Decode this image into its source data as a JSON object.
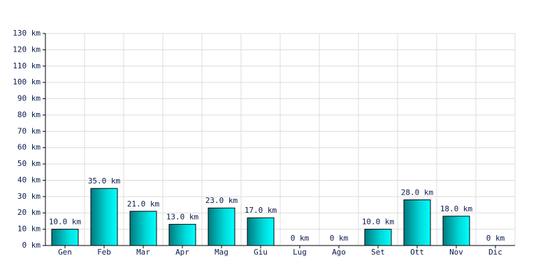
{
  "chart_data": {
    "type": "bar",
    "categories": [
      "Gen",
      "Feb",
      "Mar",
      "Apr",
      "Mag",
      "Giu",
      "Lug",
      "Ago",
      "Set",
      "Ott",
      "Nov",
      "Dic"
    ],
    "values": [
      10,
      35,
      21,
      13,
      23,
      17,
      0,
      0,
      10,
      28,
      18,
      0
    ],
    "value_labels": [
      "10.0 km",
      "35.0 km",
      "21.0 km",
      "13.0 km",
      "23.0 km",
      "17.0 km",
      "0 km",
      "0 km",
      "10.0 km",
      "28.0 km",
      "18.0 km",
      "0 km"
    ],
    "color": "#00d8d8",
    "ylim": [
      0,
      130
    ],
    "yticks": [
      {
        "value": 0,
        "label": "0 km"
      },
      {
        "value": 10,
        "label": "10 km"
      },
      {
        "value": 20,
        "label": "20 km"
      },
      {
        "value": 30,
        "label": "30 km"
      },
      {
        "value": 40,
        "label": "40 km"
      },
      {
        "value": 50,
        "label": "50 km"
      },
      {
        "value": 60,
        "label": "60 km"
      },
      {
        "value": 70,
        "label": "70 km"
      },
      {
        "value": 80,
        "label": "80 km"
      },
      {
        "value": 90,
        "label": "90 km"
      },
      {
        "value": 100,
        "label": "100 km"
      },
      {
        "value": 110,
        "label": "110 km"
      },
      {
        "value": 120,
        "label": "120 km"
      },
      {
        "value": 130,
        "label": "130 km"
      }
    ],
    "grid": true
  }
}
